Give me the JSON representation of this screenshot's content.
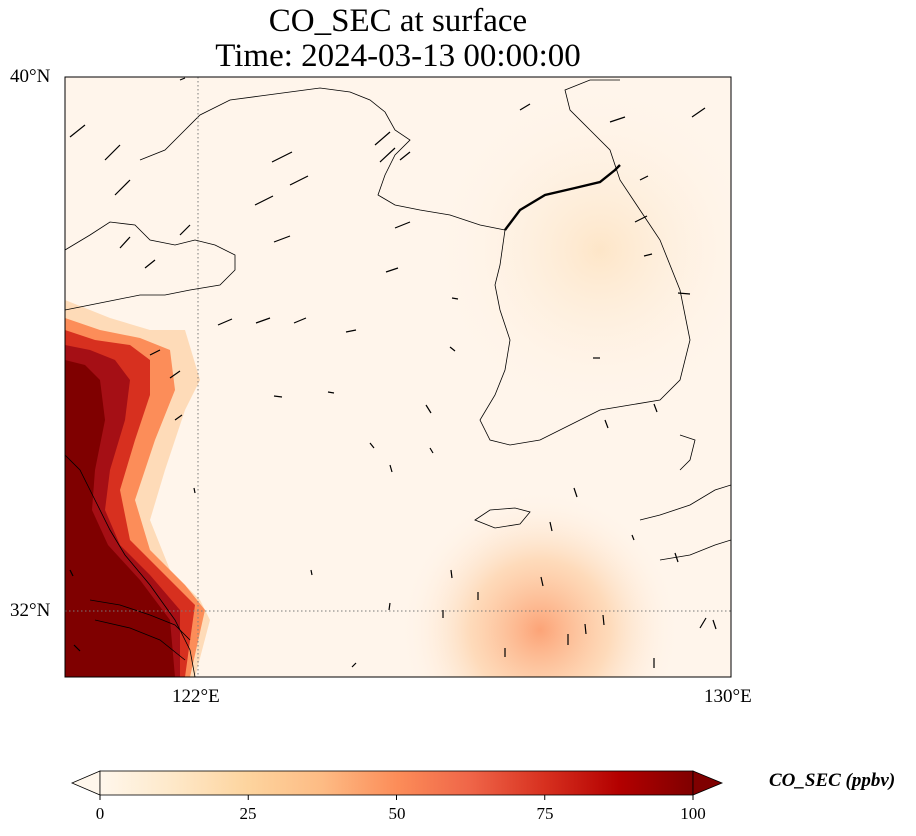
{
  "map": {
    "title_line1": "CO_SEC at surface",
    "title_line2": "Time: 2024-03-13 00:00:00",
    "lon_range": [
      120,
      130
    ],
    "lat_range": [
      31,
      40
    ],
    "lat_ticks": [
      {
        "value": 40,
        "label": "40°N"
      },
      {
        "value": 32,
        "label": "32°N"
      }
    ],
    "lon_ticks": [
      {
        "value": 122,
        "label": "122°E"
      },
      {
        "value": 130,
        "label": "130°E"
      }
    ],
    "gridlines": {
      "style": "dotted",
      "lon": [
        122
      ],
      "lat": [
        32
      ]
    },
    "field_colors": {
      "low": "#fff5eb",
      "mid": "#fdae6b",
      "high": "#7f0000"
    }
  },
  "colorbar": {
    "label": "CO_SEC (ppbv)",
    "min": 0,
    "max": 100,
    "extend": "both",
    "ticks": [
      {
        "value": 0,
        "label": "0"
      },
      {
        "value": 25,
        "label": "25"
      },
      {
        "value": 50,
        "label": "50"
      },
      {
        "value": 75,
        "label": "75"
      },
      {
        "value": 100,
        "label": "100"
      }
    ],
    "colormap": "OrRd",
    "stops": [
      "#fff7ec",
      "#fee8c8",
      "#fdd49e",
      "#fdbb84",
      "#fc8d59",
      "#ef6548",
      "#d7301f",
      "#b30000",
      "#7f0000"
    ]
  }
}
